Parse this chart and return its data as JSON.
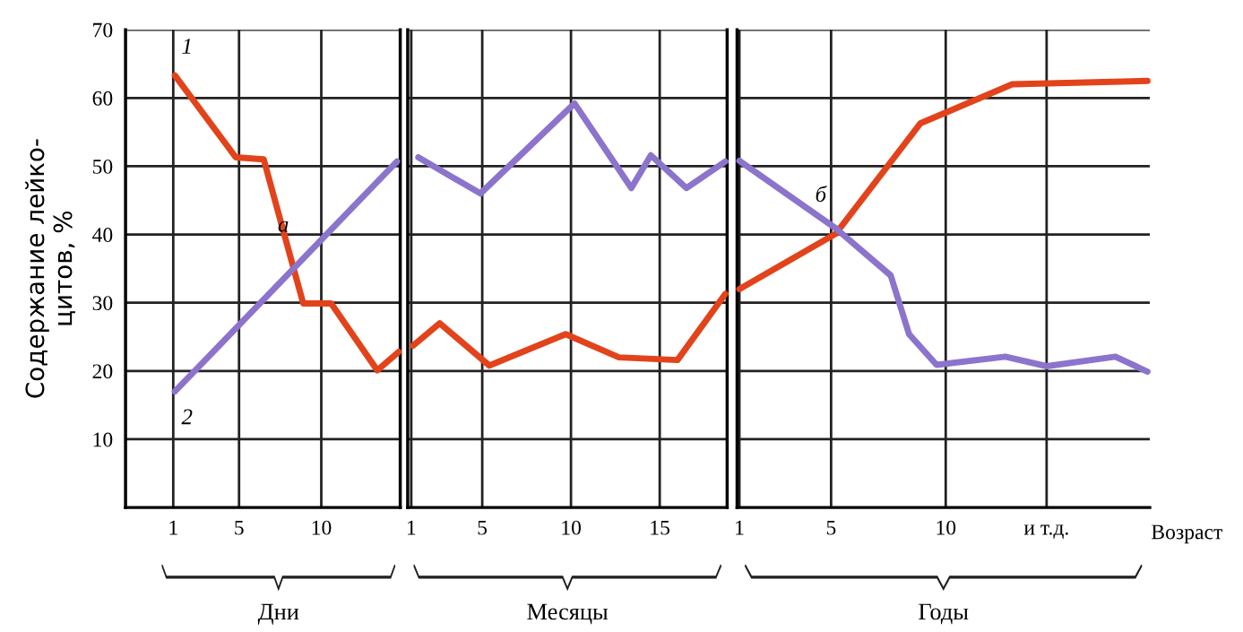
{
  "chart_data": [
    {
      "type": "line",
      "ylabel": "Содержание лейко-\nцитов, %",
      "xlabel": "Дни",
      "xlim": [
        -1.9,
        14.8
      ],
      "ylim": [
        0,
        70
      ],
      "xticks": [
        1,
        5,
        10
      ],
      "yticks": [
        10,
        20,
        30,
        40,
        50,
        60,
        70
      ],
      "grid": true,
      "legend": false,
      "line_style": "solid",
      "marker": "none",
      "series": [
        {
          "name": "1",
          "color": "#e2431b",
          "x": [
            1.1,
            4.8,
            6.5,
            8.9,
            10.6,
            13.4,
            14.7
          ],
          "values": [
            63.3,
            51.3,
            51,
            29.9,
            29.9,
            20.1,
            22.8
          ]
        },
        {
          "name": "2",
          "color": "#8c74cc",
          "x": [
            1.1,
            14.6
          ],
          "values": [
            17,
            50.7
          ]
        }
      ],
      "annotations": [
        {
          "text": "а",
          "x": 8.6,
          "y": 35.7
        }
      ]
    },
    {
      "type": "line",
      "xlabel": "Месяцы",
      "xlim": [
        0.8,
        18.8
      ],
      "ylim": [
        0,
        70
      ],
      "xticks": [
        1,
        5,
        10,
        15
      ],
      "yticks": [
        10,
        20,
        30,
        40,
        50,
        60,
        70
      ],
      "tick_labels": "x",
      "grid": true,
      "legend": false,
      "line_style": "solid",
      "marker": "none",
      "series": [
        {
          "color": "#e2431b",
          "x": [
            1.1,
            2.6,
            5.4,
            9.7,
            12.7,
            16.0,
            18.7
          ],
          "values": [
            23.7,
            27,
            20.8,
            25.4,
            22,
            21.6,
            31.3
          ]
        },
        {
          "color": "#8c74cc",
          "x": [
            1.4,
            4.9,
            10.2,
            13.4,
            14.5,
            16.5,
            18.7
          ],
          "values": [
            51.3,
            46,
            59.2,
            46.8,
            51.6,
            46.8,
            50.7
          ]
        }
      ]
    },
    {
      "type": "line",
      "xlabel": "Годы",
      "xlim": [
        0.9,
        18.9
      ],
      "ylim": [
        0,
        70
      ],
      "xticks": [
        1,
        5,
        10,
        {
          "value": 14.4,
          "label": "и т.д."
        }
      ],
      "yticks": [
        10,
        20,
        30,
        40,
        50,
        60,
        70
      ],
      "tick_labels": "x",
      "grid": true,
      "legend": false,
      "line_style": "solid",
      "marker": "none",
      "series": [
        {
          "color": "#e2431b",
          "x": [
            1.0,
            5.2,
            8.9,
            10.1,
            12.9,
            18.8
          ],
          "values": [
            32,
            40.1,
            56.3,
            58,
            62,
            62.5
          ]
        },
        {
          "color": "#8c74cc",
          "x": [
            1.0,
            5.2,
            7.6,
            8.4,
            9.6,
            12.6,
            14.4,
            17.4,
            18.8
          ],
          "values": [
            50.8,
            40.9,
            34,
            25.4,
            20.9,
            22.1,
            20.7,
            22.1,
            19.9
          ]
        }
      ],
      "annotations": [
        {
          "text": "б",
          "x": 5.2,
          "y": 40.1
        },
        "Возраст"
      ]
    }
  ]
}
